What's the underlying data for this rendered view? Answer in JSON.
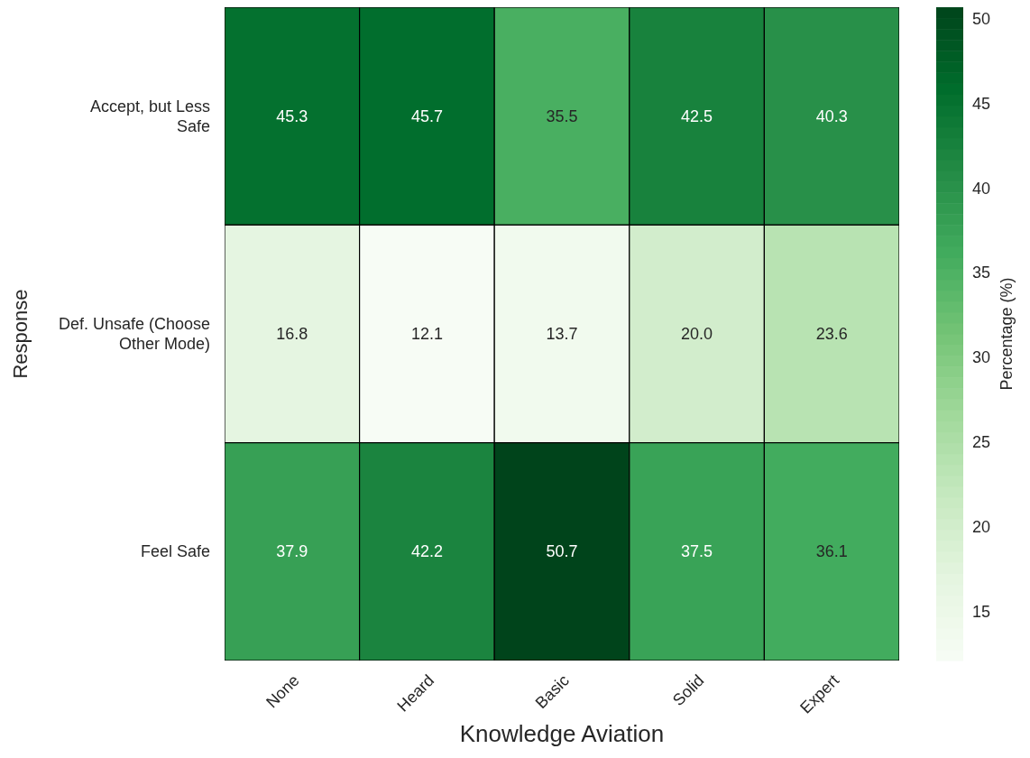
{
  "chart_data": {
    "type": "heatmap",
    "xlabel": "Knowledge Aviation",
    "ylabel": "Response",
    "clabel": "Percentage (%)",
    "categories": [
      "None",
      "Heard",
      "Basic",
      "Solid",
      "Expert"
    ],
    "y_categories": [
      "Accept, but Less Safe",
      "Def. Unsafe (Choose Other Mode)",
      "Feel Safe"
    ],
    "cells": [
      [
        45.3,
        45.7,
        35.5,
        42.5,
        40.3
      ],
      [
        16.8,
        12.1,
        13.7,
        20.0,
        23.6
      ],
      [
        37.9,
        42.2,
        50.7,
        37.5,
        36.1
      ]
    ],
    "cell_labels": [
      [
        "45.3",
        "45.7",
        "35.5",
        "42.5",
        "40.3"
      ],
      [
        "16.8",
        "12.1",
        "13.7",
        "20.0",
        "23.6"
      ],
      [
        "37.9",
        "42.2",
        "50.7",
        "37.5",
        "36.1"
      ]
    ],
    "clim": [
      12.1,
      50.7
    ],
    "cticks": [
      15,
      20,
      25,
      30,
      35,
      40,
      45,
      50
    ]
  }
}
